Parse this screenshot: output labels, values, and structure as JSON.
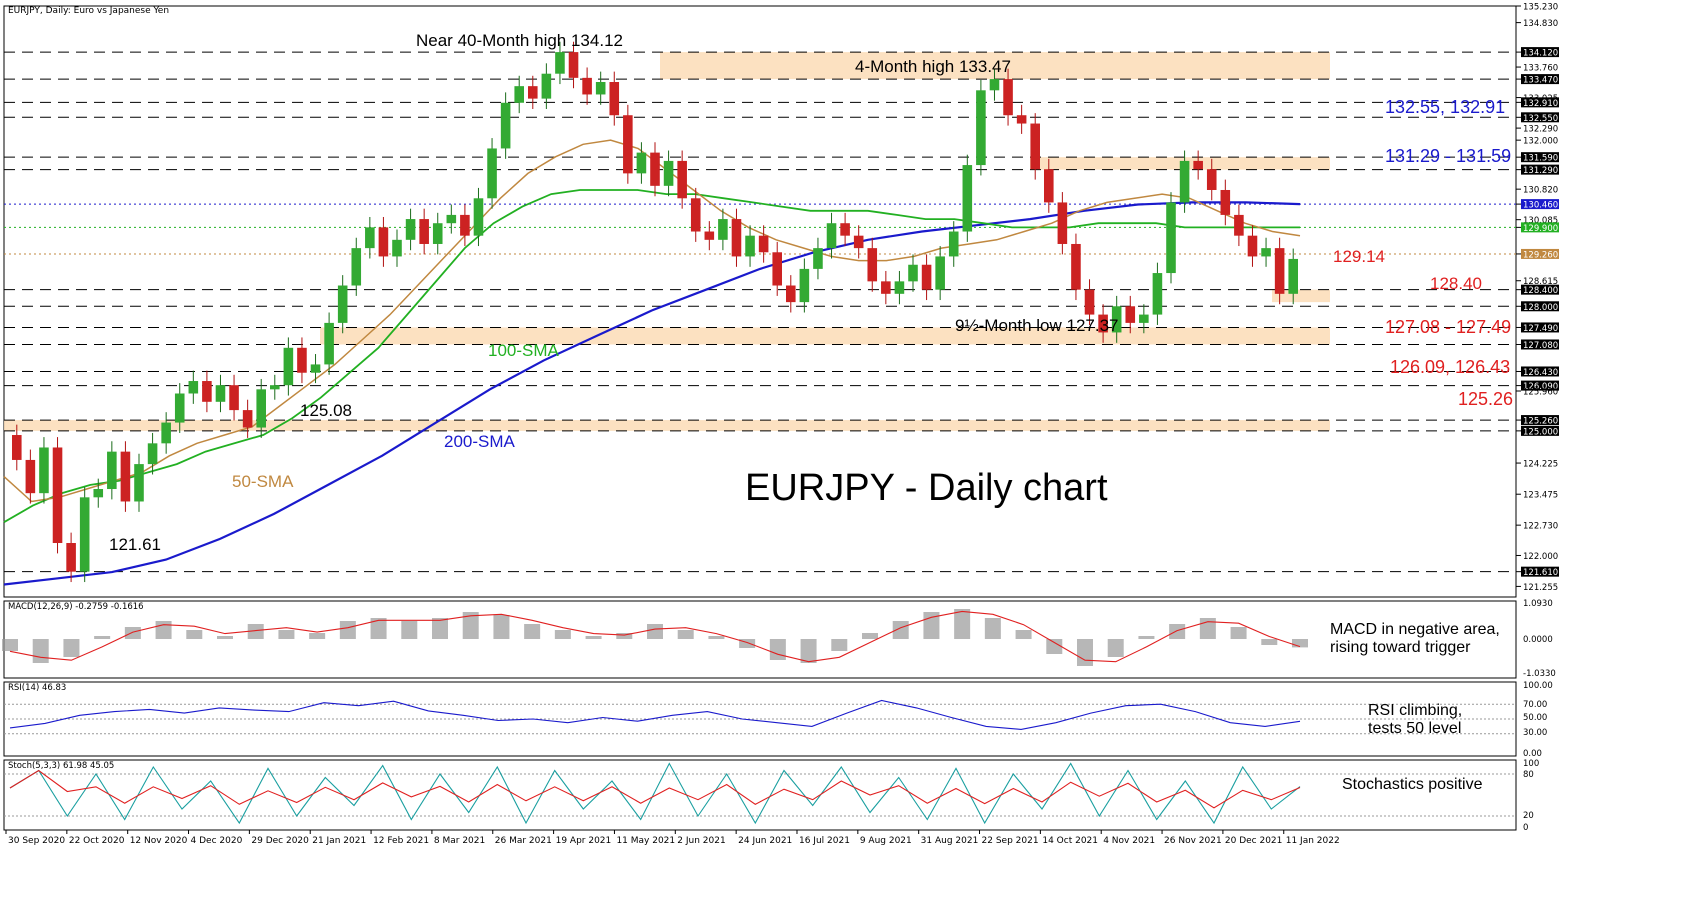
{
  "chart_data": {
    "type": "candlestick",
    "header": "EURJPY, Daily:  Euro vs Japanese Yen",
    "title": "EURJPY - Daily chart",
    "ylim": [
      121.0,
      135.23
    ],
    "price_axis_ticks": [
      "135.230",
      "134.830",
      "134.120",
      "133.760",
      "133.470",
      "133.025",
      "132.910",
      "132.550",
      "132.290",
      "132.000",
      "131.590",
      "131.290",
      "130.820",
      "130.460",
      "130.085",
      "129.900",
      "129.260",
      "128.615",
      "128.400",
      "128.000",
      "127.490",
      "127.080",
      "126.430",
      "126.090",
      "125.960",
      "125.260",
      "125.000",
      "124.225",
      "123.475",
      "122.730",
      "122.000",
      "121.610",
      "121.255"
    ],
    "date_labels": [
      "30 Sep 2020",
      "22 Oct 2020",
      "12 Nov 2020",
      "4 Dec 2020",
      "29 Dec 2020",
      "21 Jan 2021",
      "12 Feb 2021",
      "8 Mar 2021",
      "26 Mar 2021",
      "19 Apr 2021",
      "11 May 2021",
      "2 Jun 2021",
      "24 Jun 2021",
      "16 Jul 2021",
      "9 Aug 2021",
      "31 Aug 2021",
      "22 Sep 2021",
      "14 Oct 2021",
      "4 Nov 2021",
      "26 Nov 2021",
      "20 Dec 2021",
      "11 Jan 2022"
    ],
    "levels": [
      134.12,
      133.47,
      132.91,
      132.55,
      131.59,
      131.29,
      130.46,
      129.9,
      129.26,
      128.4,
      128.0,
      127.49,
      127.08,
      126.43,
      126.09,
      125.26,
      125.0,
      121.61
    ],
    "zones": [
      {
        "from": 133.47,
        "to": 134.12
      },
      {
        "from": 131.29,
        "to": 131.59
      },
      {
        "from": 128.1,
        "to": 128.4
      },
      {
        "from": 127.08,
        "to": 127.49
      },
      {
        "from": 125.0,
        "to": 125.26
      }
    ],
    "annotations": [
      {
        "text": "Near 40-Month high 134.12",
        "color": "#000000"
      },
      {
        "text": "4-Month high 133.47",
        "color": "#000000"
      },
      {
        "text": "132.55, 132.91",
        "color": "#1a1acc"
      },
      {
        "text": "131.29 - 131.59",
        "color": "#1a1acc"
      },
      {
        "text": "129.14",
        "color": "#e02020"
      },
      {
        "text": "128.40",
        "color": "#e02020"
      },
      {
        "text": "127.08 - 127.49",
        "color": "#e02020"
      },
      {
        "text": "9½-Month low 127.37",
        "color": "#000000"
      },
      {
        "text": "126.09, 126.43",
        "color": "#e02020"
      },
      {
        "text": "125.26",
        "color": "#e02020"
      },
      {
        "text": "125.08",
        "color": "#000000"
      },
      {
        "text": "121.61",
        "color": "#000000"
      },
      {
        "text": "100-SMA",
        "color": "#22b022"
      },
      {
        "text": "200-SMA",
        "color": "#1a1acc"
      },
      {
        "text": "50-SMA",
        "color": "#c08840"
      }
    ],
    "price_path": [
      124.9,
      124.3,
      123.5,
      124.6,
      122.3,
      121.61,
      123.4,
      123.6,
      124.5,
      123.3,
      124.2,
      124.7,
      125.2,
      125.9,
      126.2,
      125.7,
      126.1,
      125.5,
      125.08,
      126.0,
      126.1,
      127.0,
      126.4,
      126.6,
      127.6,
      128.5,
      129.4,
      129.9,
      129.2,
      129.6,
      130.1,
      129.5,
      130.0,
      130.2,
      129.7,
      130.6,
      131.8,
      132.9,
      133.3,
      133.0,
      133.6,
      134.12,
      133.5,
      133.1,
      133.4,
      132.6,
      131.2,
      131.7,
      130.9,
      131.5,
      130.6,
      129.8,
      129.6,
      130.1,
      129.2,
      129.7,
      129.3,
      128.5,
      128.1,
      128.9,
      129.4,
      130.0,
      129.7,
      129.4,
      128.6,
      128.3,
      128.6,
      129.0,
      128.4,
      129.2,
      129.8,
      131.4,
      133.2,
      133.47,
      132.6,
      132.4,
      131.3,
      130.5,
      129.5,
      128.4,
      127.8,
      127.37,
      128.0,
      127.6,
      127.8,
      128.8,
      130.5,
      131.5,
      131.3,
      130.8,
      130.2,
      129.7,
      129.2,
      129.4,
      128.3,
      129.14
    ],
    "sma50": [
      123.9,
      123.3,
      123.4,
      123.6,
      123.8,
      124.0,
      124.4,
      124.7,
      124.9,
      125.1,
      125.6,
      126.1,
      126.6,
      127.2,
      127.8,
      128.5,
      129.2,
      129.9,
      130.6,
      131.2,
      131.6,
      131.9,
      132.0,
      131.8,
      131.3,
      130.8,
      130.3,
      129.9,
      129.6,
      129.4,
      129.2,
      129.1,
      129.1,
      129.2,
      129.4,
      129.5,
      129.6,
      129.8,
      130.0,
      130.3,
      130.5,
      130.6,
      130.7,
      130.6,
      130.3,
      130.0,
      129.8,
      129.7
    ],
    "sma100": [
      122.8,
      123.2,
      123.5,
      123.7,
      123.8,
      124.0,
      124.2,
      124.5,
      124.7,
      124.9,
      125.3,
      125.8,
      126.4,
      127.0,
      127.8,
      128.6,
      129.4,
      130.0,
      130.4,
      130.7,
      130.8,
      130.8,
      130.8,
      130.7,
      130.7,
      130.6,
      130.5,
      130.4,
      130.3,
      130.3,
      130.3,
      130.2,
      130.1,
      130.1,
      130.0,
      129.9,
      129.9,
      129.9,
      130.0,
      130.0,
      130.0,
      129.9,
      129.9,
      129.9,
      129.9,
      129.9
    ],
    "sma200": [
      121.3,
      121.45,
      121.6,
      121.9,
      122.4,
      123.0,
      123.7,
      124.4,
      125.2,
      126.0,
      126.7,
      127.3,
      127.9,
      128.4,
      128.9,
      129.3,
      129.6,
      129.8,
      129.95,
      130.1,
      130.3,
      130.45,
      130.5,
      130.5,
      130.46
    ],
    "macd": {
      "label": "MACD(12,26,9) -0.2759 -0.1616",
      "ticks": [
        "1.0930",
        "0.0000",
        "-1.0330"
      ],
      "note": "MACD in negative area, rising toward trigger",
      "hist": [
        -0.4,
        -0.8,
        -0.6,
        0.1,
        0.4,
        0.6,
        0.3,
        0.1,
        0.5,
        0.3,
        0.2,
        0.6,
        0.7,
        0.6,
        0.7,
        0.9,
        0.8,
        0.5,
        0.3,
        0.1,
        0.2,
        0.5,
        0.3,
        0.1,
        -0.3,
        -0.7,
        -0.8,
        -0.4,
        0.2,
        0.6,
        0.9,
        1.0,
        0.7,
        0.3,
        -0.5,
        -0.9,
        -0.6,
        0.1,
        0.5,
        0.7,
        0.4,
        -0.2,
        -0.28
      ]
    },
    "rsi": {
      "label": "RSI(14) 46.83",
      "ticks": [
        "100.00",
        "70.00",
        "50.00",
        "30.00",
        "0.00"
      ],
      "note": "RSI climbing, tests 50 level",
      "values": [
        38,
        44,
        55,
        60,
        63,
        58,
        65,
        62,
        60,
        72,
        68,
        74,
        61,
        55,
        48,
        50,
        45,
        52,
        47,
        55,
        60,
        50,
        45,
        40,
        58,
        75,
        65,
        52,
        40,
        36,
        45,
        58,
        68,
        70,
        60,
        45,
        40,
        46.83
      ]
    },
    "stoch": {
      "label": "Stoch(5,3,3) 61.98 45.05",
      "ticks": [
        "100",
        "80",
        "20",
        "0"
      ],
      "note": "Stochastics positive",
      "values": [
        60,
        85,
        20,
        80,
        15,
        90,
        30,
        70,
        10,
        88,
        20,
        75,
        35,
        92,
        15,
        80,
        25,
        90,
        10,
        85,
        30,
        70,
        15,
        95,
        20,
        80,
        10,
        85,
        35,
        90,
        25,
        75,
        15,
        88,
        10,
        80,
        30,
        95,
        20,
        85,
        15,
        70,
        10,
        90,
        30,
        62
      ]
    }
  }
}
